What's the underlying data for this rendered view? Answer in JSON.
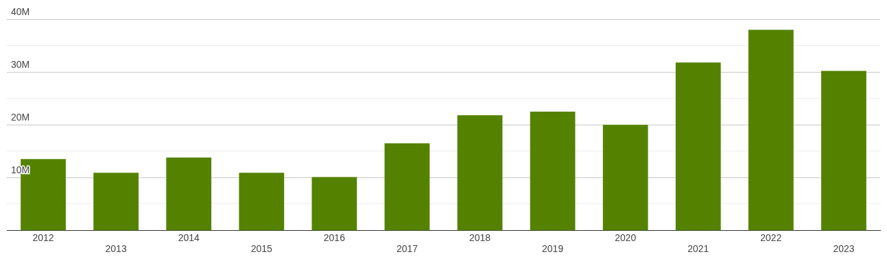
{
  "chart_data": {
    "type": "bar",
    "categories": [
      "2012",
      "2013",
      "2014",
      "2015",
      "2016",
      "2017",
      "2018",
      "2019",
      "2020",
      "2021",
      "2022",
      "2023"
    ],
    "values": [
      13500000,
      10900000,
      13800000,
      10900000,
      10100000,
      16500000,
      21800000,
      22500000,
      20000000,
      31800000,
      38000000,
      30200000
    ],
    "color": "#548200",
    "ylim": [
      0,
      40000000
    ],
    "yticks": [
      {
        "value": 5000000,
        "label": null
      },
      {
        "value": 10000000,
        "label": "10M"
      },
      {
        "value": 15000000,
        "label": null
      },
      {
        "value": 20000000,
        "label": "20M"
      },
      {
        "value": 25000000,
        "label": null
      },
      {
        "value": 30000000,
        "label": "30M"
      },
      {
        "value": 35000000,
        "label": null
      },
      {
        "value": 40000000,
        "label": "40M"
      }
    ],
    "grid": "y",
    "legend": false
  }
}
